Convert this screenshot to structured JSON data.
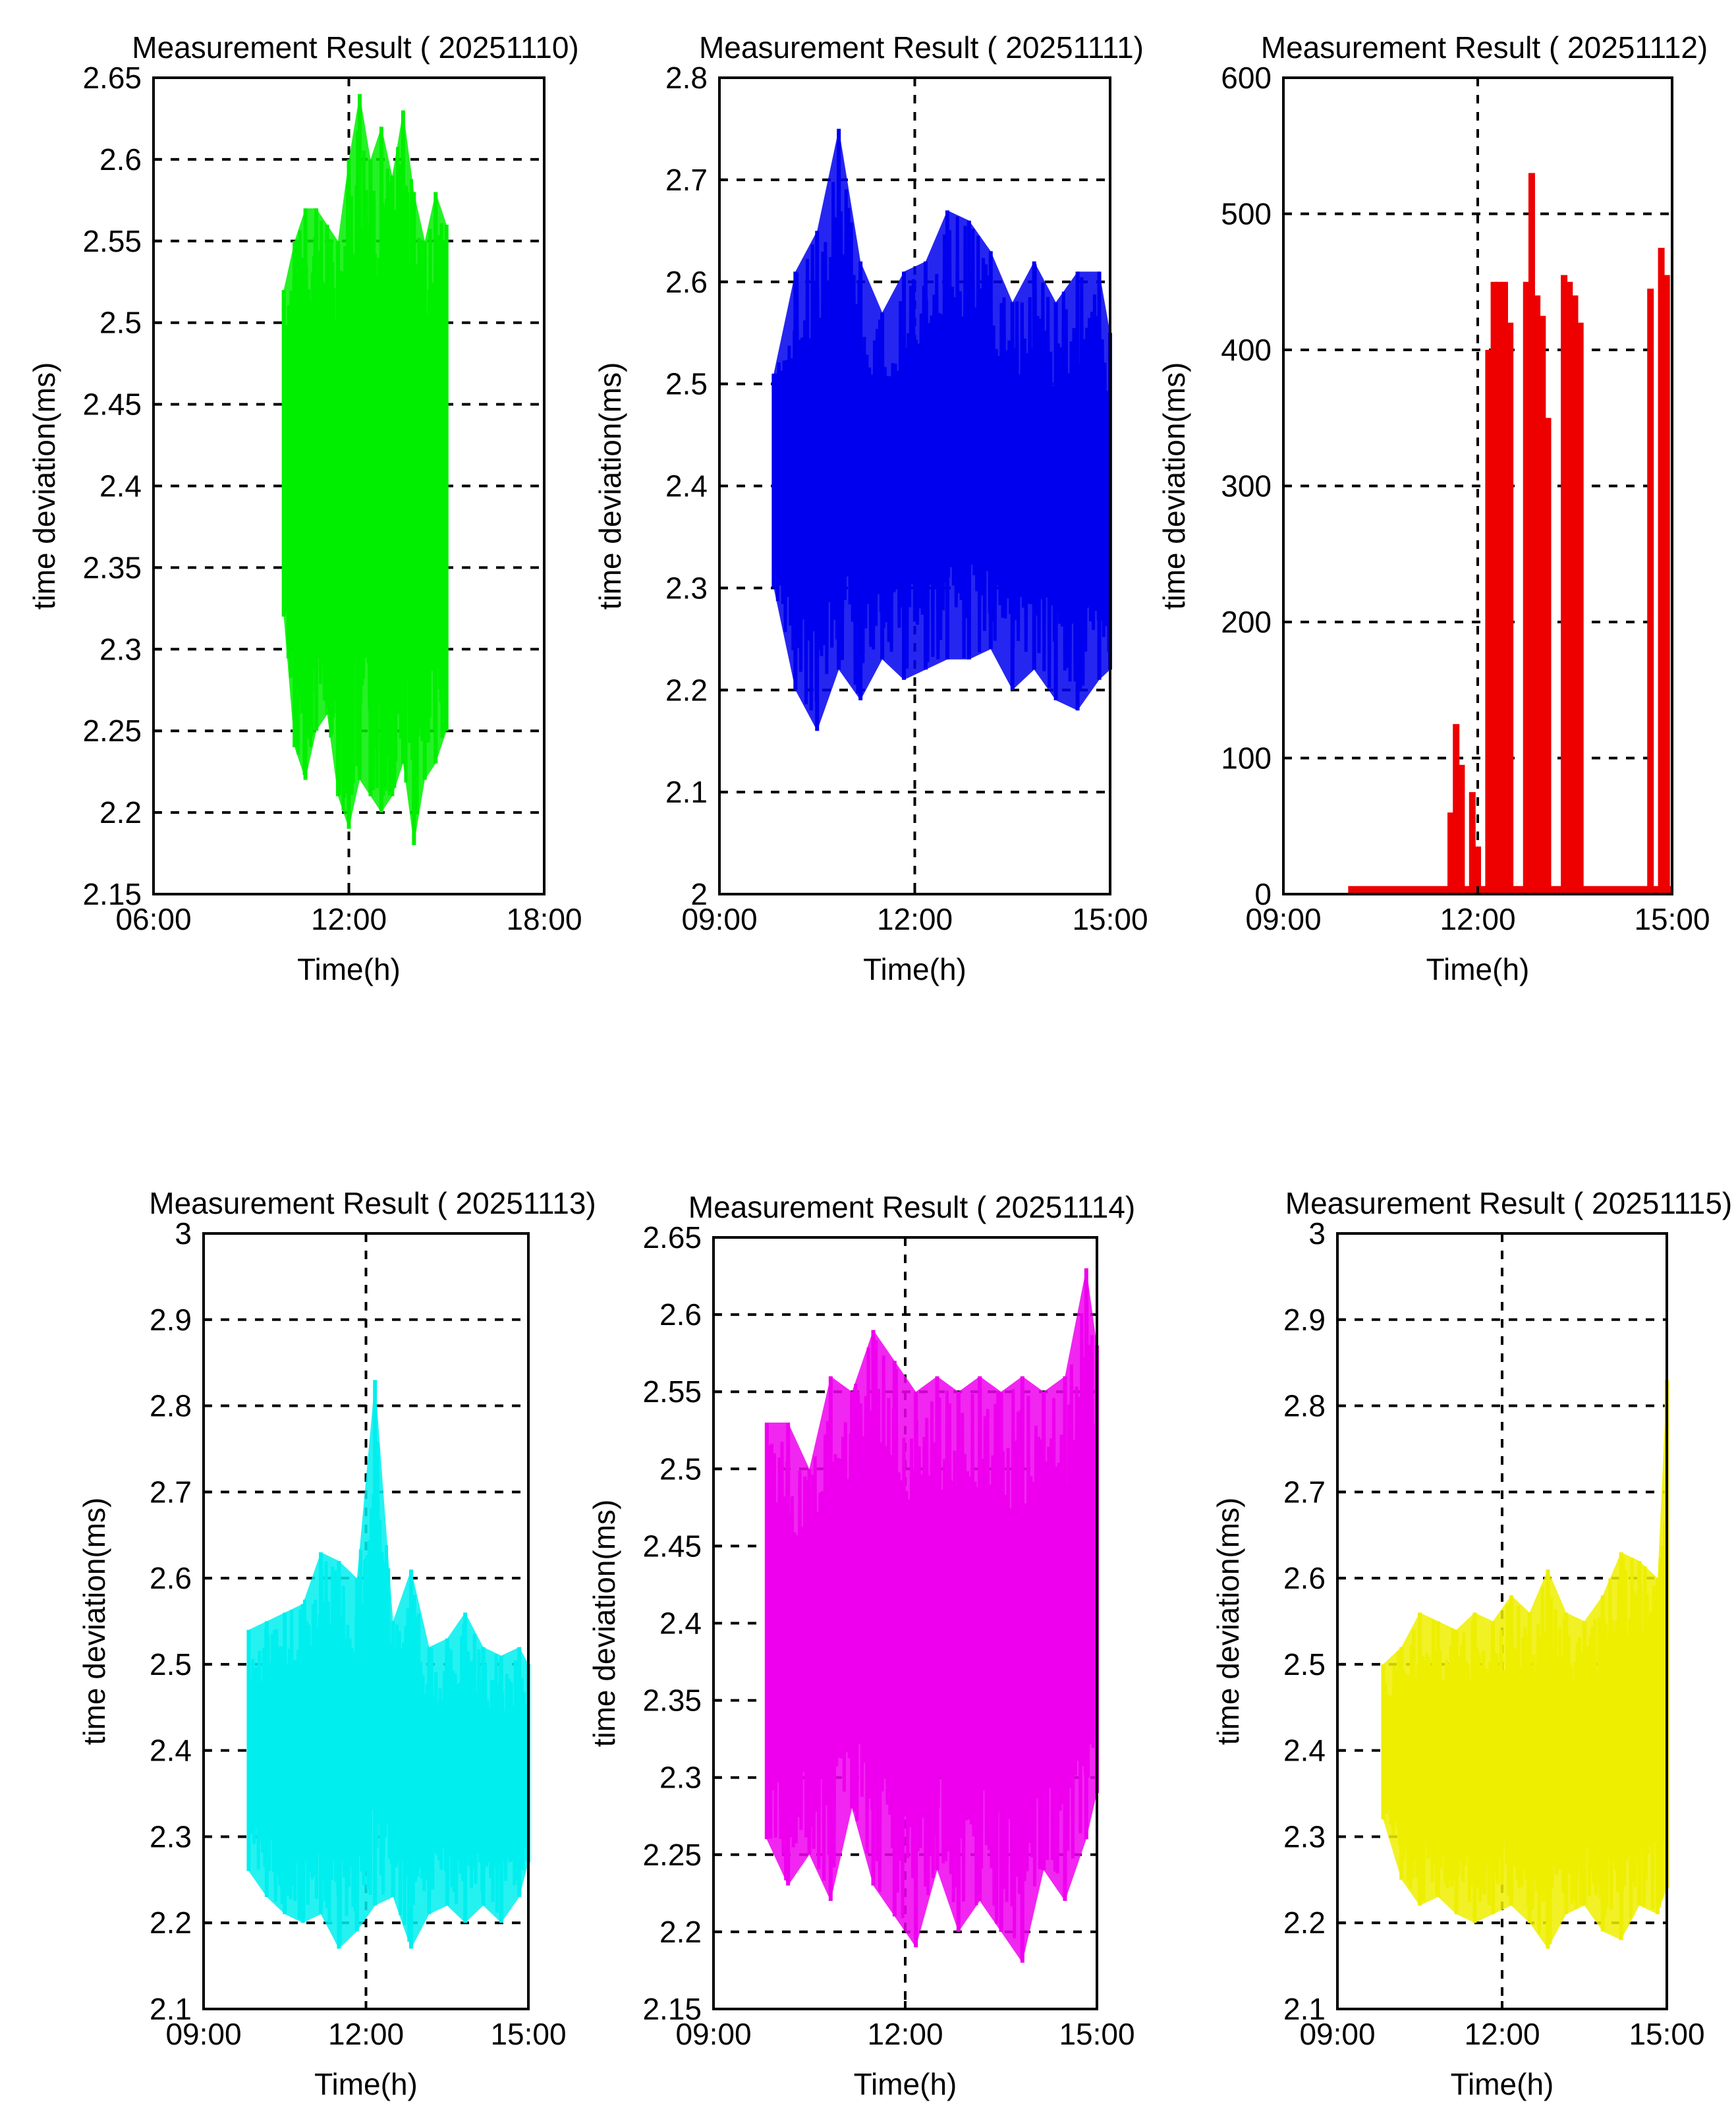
{
  "figure": {
    "grid": true,
    "grid_style": "dashed",
    "panel_layout": "2 rows x 3 columns"
  },
  "chart_data": [
    {
      "type": "line",
      "title": "Measurement Result ( 20251110)",
      "xlabel": "Time(h)",
      "ylabel": "time deviation(ms)",
      "color": "#00ee00",
      "xlim": [
        "06:00",
        "18:00"
      ],
      "x_ticks": [
        "06:00",
        "12:00",
        "18:00"
      ],
      "ylim": [
        2.15,
        2.65
      ],
      "y_ticks": [
        "2.15",
        "2.2",
        "2.25",
        "2.3",
        "2.35",
        "2.4",
        "2.45",
        "2.5",
        "2.55",
        "2.6",
        "2.65"
      ],
      "series": [
        {
          "x": [
            "10:00",
            "10:20",
            "10:40",
            "11:00",
            "11:20",
            "11:40",
            "12:00",
            "12:20",
            "12:40",
            "13:00",
            "13:20",
            "13:40",
            "14:00",
            "14:20",
            "14:40",
            "15:00"
          ],
          "upper": [
            2.52,
            2.55,
            2.57,
            2.57,
            2.56,
            2.55,
            2.6,
            2.64,
            2.6,
            2.62,
            2.59,
            2.63,
            2.58,
            2.55,
            2.58,
            2.56
          ],
          "lower": [
            2.32,
            2.24,
            2.22,
            2.25,
            2.26,
            2.21,
            2.19,
            2.22,
            2.21,
            2.2,
            2.21,
            2.23,
            2.18,
            2.22,
            2.23,
            2.25
          ]
        }
      ]
    },
    {
      "type": "line",
      "title": "Measurement Result ( 20251111)",
      "xlabel": "Time(h)",
      "ylabel": "time deviation(ms)",
      "color": "#0000ee",
      "xlim": [
        "09:00",
        "15:00"
      ],
      "x_ticks": [
        "09:00",
        "12:00",
        "15:00"
      ],
      "ylim": [
        2.0,
        2.8
      ],
      "y_ticks": [
        "2",
        "2.1",
        "2.2",
        "2.3",
        "2.4",
        "2.5",
        "2.6",
        "2.7",
        "2.8"
      ],
      "series": [
        {
          "x": [
            "09:50",
            "10:10",
            "10:30",
            "10:50",
            "11:10",
            "11:30",
            "11:50",
            "12:10",
            "12:30",
            "12:50",
            "13:10",
            "13:30",
            "13:50",
            "14:10",
            "14:30",
            "14:50",
            "15:00"
          ],
          "upper": [
            2.51,
            2.61,
            2.65,
            2.75,
            2.62,
            2.57,
            2.61,
            2.62,
            2.67,
            2.66,
            2.63,
            2.58,
            2.62,
            2.58,
            2.61,
            2.61,
            2.55
          ],
          "lower": [
            2.3,
            2.2,
            2.16,
            2.22,
            2.19,
            2.23,
            2.21,
            2.22,
            2.23,
            2.23,
            2.24,
            2.2,
            2.22,
            2.19,
            2.18,
            2.21,
            2.22
          ]
        }
      ]
    },
    {
      "type": "bar",
      "title": "Measurement Result ( 20251112)",
      "xlabel": "Time(h)",
      "ylabel": "time deviation(ms)",
      "color": "#ee0000",
      "xlim": [
        "09:00",
        "15:00"
      ],
      "x_ticks": [
        "09:00",
        "12:00",
        "15:00"
      ],
      "ylim": [
        0,
        600
      ],
      "y_ticks": [
        "0",
        "100",
        "200",
        "300",
        "400",
        "500",
        "600"
      ],
      "series": [
        {
          "x": [
            "10:00",
            "11:00",
            "11:30",
            "11:35",
            "11:40",
            "11:45",
            "11:50",
            "11:55",
            "12:00",
            "12:10",
            "12:15",
            "12:20",
            "12:25",
            "12:30",
            "12:35",
            "12:40",
            "12:45",
            "12:50",
            "12:55",
            "13:00",
            "13:05",
            "13:10",
            "13:15",
            "13:20",
            "13:25",
            "13:30",
            "13:35",
            "13:40",
            "13:45",
            "13:50",
            "13:55",
            "14:00",
            "14:05",
            "14:10",
            "14:15",
            "14:20",
            "14:25",
            "14:30",
            "14:40",
            "14:45",
            "14:50",
            "14:55"
          ],
          "values": [
            5,
            5,
            5,
            60,
            125,
            95,
            5,
            75,
            35,
            400,
            450,
            450,
            450,
            420,
            5,
            5,
            450,
            530,
            440,
            425,
            350,
            5,
            5,
            455,
            450,
            440,
            420,
            5,
            5,
            5,
            5,
            5,
            5,
            5,
            5,
            5,
            5,
            5,
            445,
            5,
            475,
            455
          ]
        }
      ]
    },
    {
      "type": "line",
      "title": "Measurement Result ( 20251113)",
      "xlabel": "Time(h)",
      "ylabel": "time deviation(ms)",
      "color": "#00eeee",
      "xlim": [
        "09:00",
        "15:00"
      ],
      "x_ticks": [
        "09:00",
        "12:00",
        "15:00"
      ],
      "ylim": [
        2.1,
        3.0
      ],
      "y_ticks": [
        "2.1",
        "2.2",
        "2.3",
        "2.4",
        "2.5",
        "2.6",
        "2.7",
        "2.8",
        "2.9",
        "3"
      ],
      "series": [
        {
          "x": [
            "09:50",
            "10:10",
            "10:30",
            "10:50",
            "11:10",
            "11:30",
            "11:50",
            "12:10",
            "12:30",
            "12:50",
            "13:10",
            "13:30",
            "13:50",
            "14:10",
            "14:30",
            "14:50",
            "15:00"
          ],
          "upper": [
            2.54,
            2.55,
            2.56,
            2.57,
            2.63,
            2.62,
            2.6,
            2.83,
            2.55,
            2.61,
            2.52,
            2.53,
            2.56,
            2.52,
            2.51,
            2.52,
            2.5
          ],
          "lower": [
            2.26,
            2.23,
            2.21,
            2.2,
            2.21,
            2.17,
            2.19,
            2.22,
            2.23,
            2.17,
            2.21,
            2.22,
            2.2,
            2.22,
            2.2,
            2.23,
            2.27
          ]
        }
      ]
    },
    {
      "type": "line",
      "title": "Measurement Result ( 20251114)",
      "xlabel": "Time(h)",
      "ylabel": "time deviation(ms)",
      "color": "#ee00ee",
      "xlim": [
        "09:00",
        "15:00"
      ],
      "x_ticks": [
        "09:00",
        "12:00",
        "15:00"
      ],
      "ylim": [
        2.15,
        2.65
      ],
      "y_ticks": [
        "2.15",
        "2.2",
        "2.25",
        "2.3",
        "2.35",
        "2.4",
        "2.45",
        "2.5",
        "2.55",
        "2.6",
        "2.65"
      ],
      "series": [
        {
          "x": [
            "09:50",
            "10:10",
            "10:30",
            "10:50",
            "11:10",
            "11:30",
            "11:50",
            "12:10",
            "12:30",
            "12:50",
            "13:10",
            "13:30",
            "13:50",
            "14:10",
            "14:30",
            "14:50",
            "15:00"
          ],
          "upper": [
            2.53,
            2.53,
            2.5,
            2.56,
            2.55,
            2.59,
            2.57,
            2.55,
            2.56,
            2.55,
            2.56,
            2.55,
            2.56,
            2.55,
            2.56,
            2.63,
            2.58
          ],
          "lower": [
            2.26,
            2.23,
            2.25,
            2.22,
            2.28,
            2.23,
            2.21,
            2.19,
            2.24,
            2.2,
            2.22,
            2.2,
            2.18,
            2.24,
            2.22,
            2.26,
            2.29
          ]
        }
      ]
    },
    {
      "type": "line",
      "title": "Measurement Result ( 20251115)",
      "xlabel": "Time(h)",
      "ylabel": "time deviation(ms)",
      "color": "#eeee00",
      "xlim": [
        "09:00",
        "15:00"
      ],
      "x_ticks": [
        "09:00",
        "12:00",
        "15:00"
      ],
      "ylim": [
        2.1,
        3.0
      ],
      "y_ticks": [
        "2.1",
        "2.2",
        "2.3",
        "2.4",
        "2.5",
        "2.6",
        "2.7",
        "2.8",
        "2.9",
        "3"
      ],
      "series": [
        {
          "x": [
            "09:50",
            "10:10",
            "10:30",
            "10:50",
            "11:10",
            "11:30",
            "11:50",
            "12:10",
            "12:30",
            "12:50",
            "13:10",
            "13:30",
            "13:50",
            "14:10",
            "14:30",
            "14:50",
            "15:00"
          ],
          "upper": [
            2.5,
            2.52,
            2.56,
            2.55,
            2.54,
            2.56,
            2.55,
            2.58,
            2.56,
            2.61,
            2.56,
            2.55,
            2.58,
            2.63,
            2.62,
            2.6,
            2.83
          ],
          "lower": [
            2.32,
            2.25,
            2.22,
            2.23,
            2.21,
            2.2,
            2.21,
            2.22,
            2.2,
            2.17,
            2.21,
            2.22,
            2.19,
            2.18,
            2.22,
            2.21,
            2.24
          ]
        }
      ]
    }
  ]
}
